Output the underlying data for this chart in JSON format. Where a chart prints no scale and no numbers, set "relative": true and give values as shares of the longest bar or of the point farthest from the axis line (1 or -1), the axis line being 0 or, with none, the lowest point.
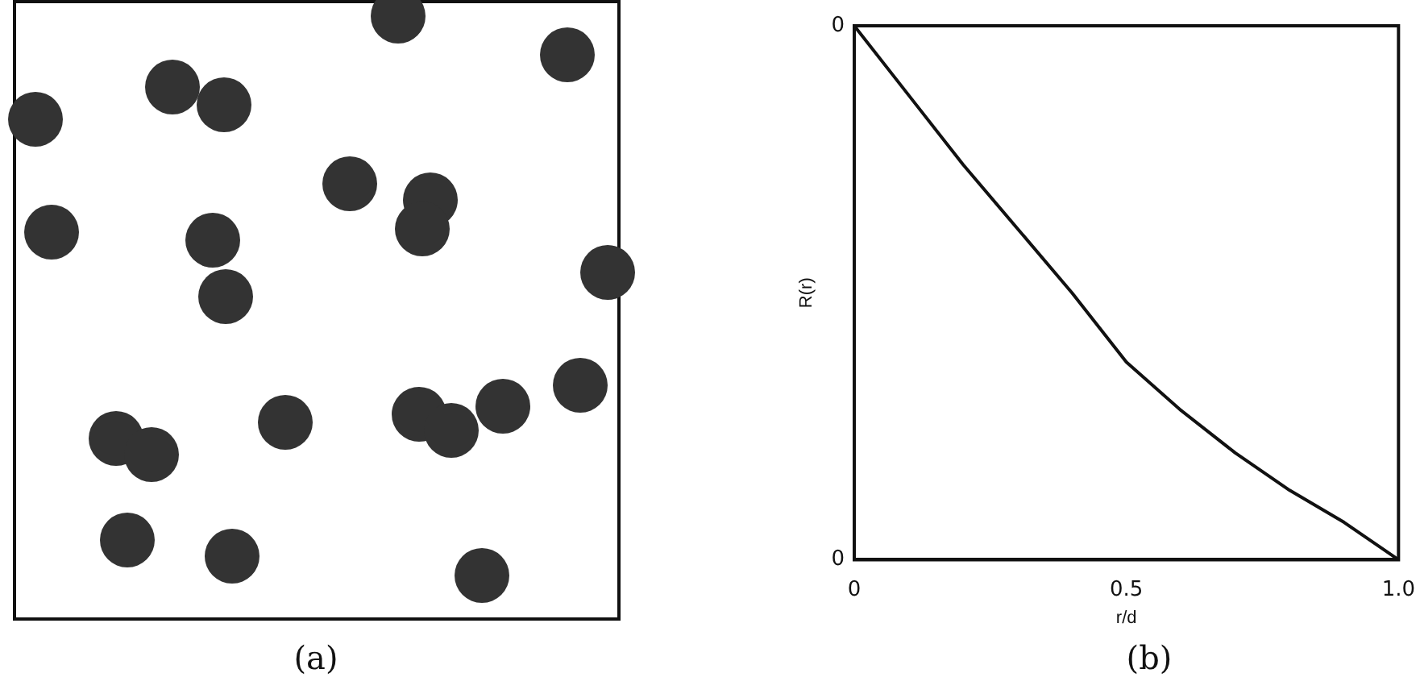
{
  "chart_data": [
    {
      "type": "other",
      "annotations": [
        "(a)"
      ]
    },
    {
      "type": "line",
      "xlabel": "r/d",
      "ylabel": "R(r)",
      "annotations": [
        "(b)",
        "0",
        "0"
      ],
      "color": "#111111",
      "marker": "none",
      "grid": false,
      "legend": false,
      "x": [
        0,
        0.1,
        0.2,
        0.3,
        0.4,
        0.5,
        0.6,
        0.7,
        0.8,
        0.9,
        1
      ],
      "values": [
        1,
        0.87,
        0.74,
        0.62,
        0.5,
        0.37,
        0.28,
        0.2,
        0.13,
        0.07,
        0
      ],
      "xlim": [
        0,
        1
      ],
      "xticks": [
        0,
        0.5,
        {
          "value": 1,
          "label": "1.0"
        }
      ],
      "relative": true
    }
  ]
}
